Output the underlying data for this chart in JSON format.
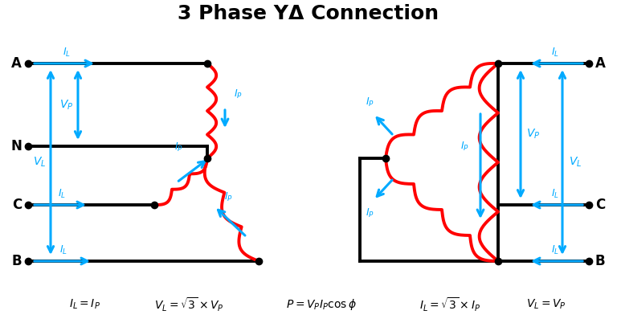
{
  "title": "3 Phase YΔ Connection",
  "title_fontsize": 18,
  "title_fontweight": "bold",
  "bg_color": "#ffffff",
  "line_color": "#000000",
  "arrow_color": "#00aaff",
  "coil_color": "#ff0000",
  "label_color": "#000000",
  "formula_left1": "$I_L = I_P$",
  "formula_left2": "$V_L = \\sqrt{3} \\times V_P$",
  "formula_center": "$P = V_P I_P \\cos\\phi$",
  "formula_right1": "$I_L = \\sqrt{3} \\times I_P$",
  "formula_right2": "$V_L = V_P$"
}
